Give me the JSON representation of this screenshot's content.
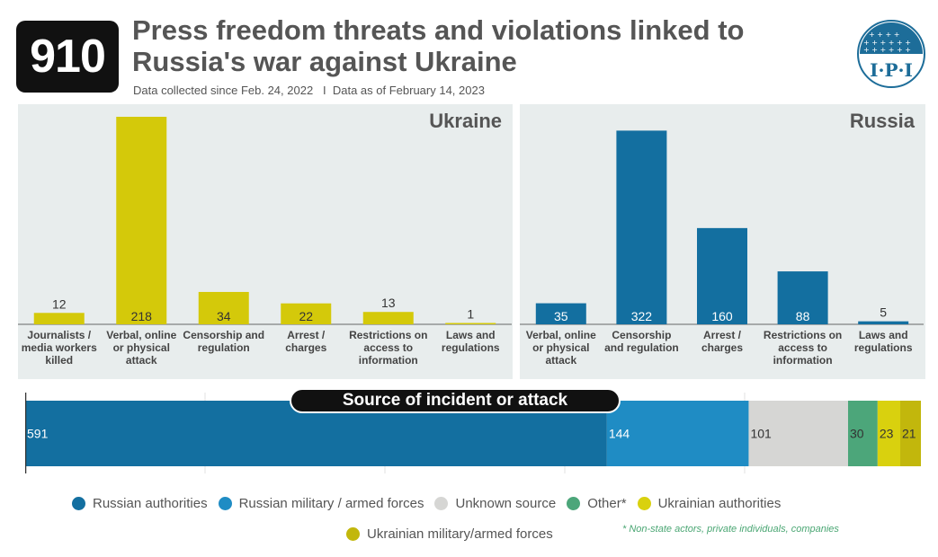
{
  "header": {
    "badge": "910",
    "title_line1": "Press freedom threats and violations linked to",
    "title_line2": "Russia's war against Ukraine",
    "subtitle": "Data collected since Feb. 24, 2022   I  Data as of February 14, 2023",
    "logo_text": "I·P·I"
  },
  "colors": {
    "ukraine": "#d4c90a",
    "russia": "#136fa0",
    "russian_authorities": "#136fa0",
    "russian_military": "#1f8cc4",
    "unknown": "#d6d6d4",
    "other": "#4ca67a",
    "ukrainian_authorities": "#d9d10e",
    "ukrainian_military": "#c2b70c"
  },
  "chart_data": [
    {
      "type": "bar",
      "title": "Ukraine",
      "categories": [
        "Journalists / media workers killed",
        "Verbal, online or physical attack",
        "Censorship and regulation",
        "Arrest / charges",
        "Restrictions on access to information",
        "Laws and regulations"
      ],
      "category_lines": [
        [
          "Journalists /",
          "media workers",
          "killed"
        ],
        [
          "Verbal, online",
          "or physical",
          "attack"
        ],
        [
          "Censorship and",
          "regulation"
        ],
        [
          "Arrest /",
          "charges"
        ],
        [
          "Restrictions on",
          "access to",
          "information"
        ],
        [
          "Laws and",
          "regulations"
        ]
      ],
      "values": [
        12,
        218,
        34,
        22,
        13,
        1
      ],
      "labels": [
        "12",
        "218",
        "34",
        "22",
        "13",
        "1"
      ],
      "ylim": [
        0,
        218
      ]
    },
    {
      "type": "bar",
      "title": "Russia",
      "categories": [
        "Verbal, online or physical attack",
        "Censorship and regulation",
        "Arrest / charges",
        "Restrictions on access to information",
        "Laws and regulations"
      ],
      "category_lines": [
        [
          "Verbal, online",
          "or physical",
          "attack"
        ],
        [
          "Censorship",
          "and regulation"
        ],
        [
          "Arrest /",
          "charges"
        ],
        [
          "Restrictions on",
          "access to",
          "information"
        ],
        [
          "Laws and",
          "regulations"
        ]
      ],
      "values": [
        35,
        322,
        160,
        88,
        5
      ],
      "labels": [
        "35",
        "322",
        "160",
        "88",
        "5"
      ],
      "ylim": [
        0,
        345
      ]
    },
    {
      "type": "bar",
      "title": "Source of incident or attack",
      "orientation": "horizontal-stacked",
      "categories": [
        "Russian authorities",
        "Russian military / armed forces",
        "Unknown source",
        "Other*",
        "Ukrainian authorities",
        "Ukrainian military/armed forces"
      ],
      "values": [
        591,
        144,
        101,
        30,
        23,
        21
      ],
      "labels": [
        "591",
        "144",
        "101",
        "30",
        "23",
        "21"
      ]
    }
  ],
  "legend": {
    "row1": [
      "Russian authorities",
      "Russian military / armed forces",
      "Unknown source",
      "Other*",
      "Ukrainian authorities"
    ],
    "row2": [
      "Ukrainian military/armed forces"
    ],
    "footnote": "* Non-state actors, private individuals, companies"
  }
}
